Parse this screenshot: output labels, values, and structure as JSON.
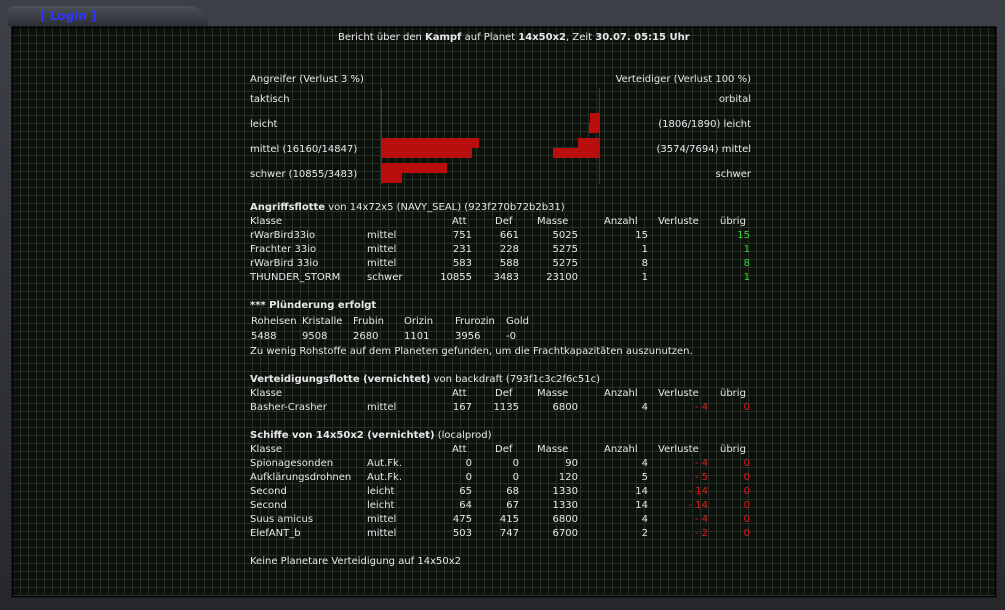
{
  "nav": {
    "login": "[ Login ]"
  },
  "report": {
    "title_prefix": "Bericht über den ",
    "title_kampf": "Kampf",
    "title_mid": " auf Planet ",
    "title_planet": "14x50x2",
    "title_mid2": ", Zeit ",
    "title_time": "30.07. 05:15 Uhr"
  },
  "overview": {
    "attacker": "Angreifer (Verlust 3 %)",
    "defender": "Verteidiger (Verlust 100 %)",
    "rows": [
      {
        "left": "taktisch",
        "right": "orbital"
      },
      {
        "left": "leicht",
        "right": "(1806/1890) leicht"
      },
      {
        "left": "mittel (16160/14847)",
        "right": "(3574/7694) mittel"
      },
      {
        "left": "schwer (10855/3483)",
        "right": "schwer"
      }
    ]
  },
  "headers": {
    "klasse": "Klasse",
    "att": "Att",
    "def": "Def",
    "masse": "Masse",
    "anzahl": "Anzahl",
    "verluste": "Verluste",
    "uebrig": "übrig"
  },
  "attack_fleet": {
    "title": "Angriffsflotte",
    "suffix": " von 14x72x5 (NAVY_SEAL) (923f270b72b2b31)",
    "rows": [
      {
        "name": "rWarBird33io",
        "type": "mittel",
        "att": "751",
        "def": "661",
        "masse": "5025",
        "anzahl": "15",
        "verluste": "",
        "uebrig": "15"
      },
      {
        "name": "Frachter 33io",
        "type": "mittel",
        "att": "231",
        "def": "228",
        "masse": "5275",
        "anzahl": "1",
        "verluste": "",
        "uebrig": "1"
      },
      {
        "name": "rWarBird 33io",
        "type": "mittel",
        "att": "583",
        "def": "588",
        "masse": "5275",
        "anzahl": "8",
        "verluste": "",
        "uebrig": "8"
      },
      {
        "name": "THUNDER_STORM",
        "type": "schwer",
        "att": "10855",
        "def": "3483",
        "masse": "23100",
        "anzahl": "1",
        "verluste": "",
        "uebrig": "1"
      }
    ]
  },
  "plunder": {
    "title": "*** Plünderung erfolgt",
    "labels": [
      "Roheisen",
      "Kristalle",
      "Frubin",
      "Orizin",
      "Frurozin",
      "Gold"
    ],
    "values": [
      "5488",
      "9508",
      "2680",
      "1101",
      "3956",
      "-0"
    ],
    "note": "Zu wenig Rohstoffe auf dem Planeten gefunden, um die Frachtkapazitäten auszunutzen."
  },
  "defense_fleet": {
    "title": "Verteidigungsflotte (vernichtet)",
    "suffix": " von backdraft (793f1c3c2f6c51c)",
    "rows": [
      {
        "name": "Basher-Crasher",
        "type": "mittel",
        "att": "167",
        "def": "1135",
        "masse": "6800",
        "anzahl": "4",
        "verluste": "- 4",
        "uebrig": "0"
      }
    ]
  },
  "planet_ships": {
    "title": "Schiffe von 14x50x2 (vernichtet)",
    "suffix": " (localprod)",
    "rows": [
      {
        "name": "Spionagesonden",
        "type": "Aut.Fk.",
        "att": "0",
        "def": "0",
        "masse": "90",
        "anzahl": "4",
        "verluste": "- 4",
        "uebrig": "0"
      },
      {
        "name": "Aufklärungsdrohnen",
        "type": "Aut.Fk.",
        "att": "0",
        "def": "0",
        "masse": "120",
        "anzahl": "5",
        "verluste": "- 5",
        "uebrig": "0"
      },
      {
        "name": "Second",
        "type": "leicht",
        "att": "65",
        "def": "68",
        "masse": "1330",
        "anzahl": "14",
        "verluste": "- 14",
        "uebrig": "0"
      },
      {
        "name": "Second",
        "type": "leicht",
        "att": "64",
        "def": "67",
        "masse": "1330",
        "anzahl": "14",
        "verluste": "- 14",
        "uebrig": "0"
      },
      {
        "name": "Suus amicus",
        "type": "mittel",
        "att": "475",
        "def": "415",
        "masse": "6800",
        "anzahl": "4",
        "verluste": "- 4",
        "uebrig": "0"
      },
      {
        "name": "ElefANT_b",
        "type": "mittel",
        "att": "503",
        "def": "747",
        "masse": "6700",
        "anzahl": "2",
        "verluste": "- 2",
        "uebrig": "0"
      }
    ]
  },
  "footer": "Keine Planetare Verteidigung auf 14x50x2"
}
